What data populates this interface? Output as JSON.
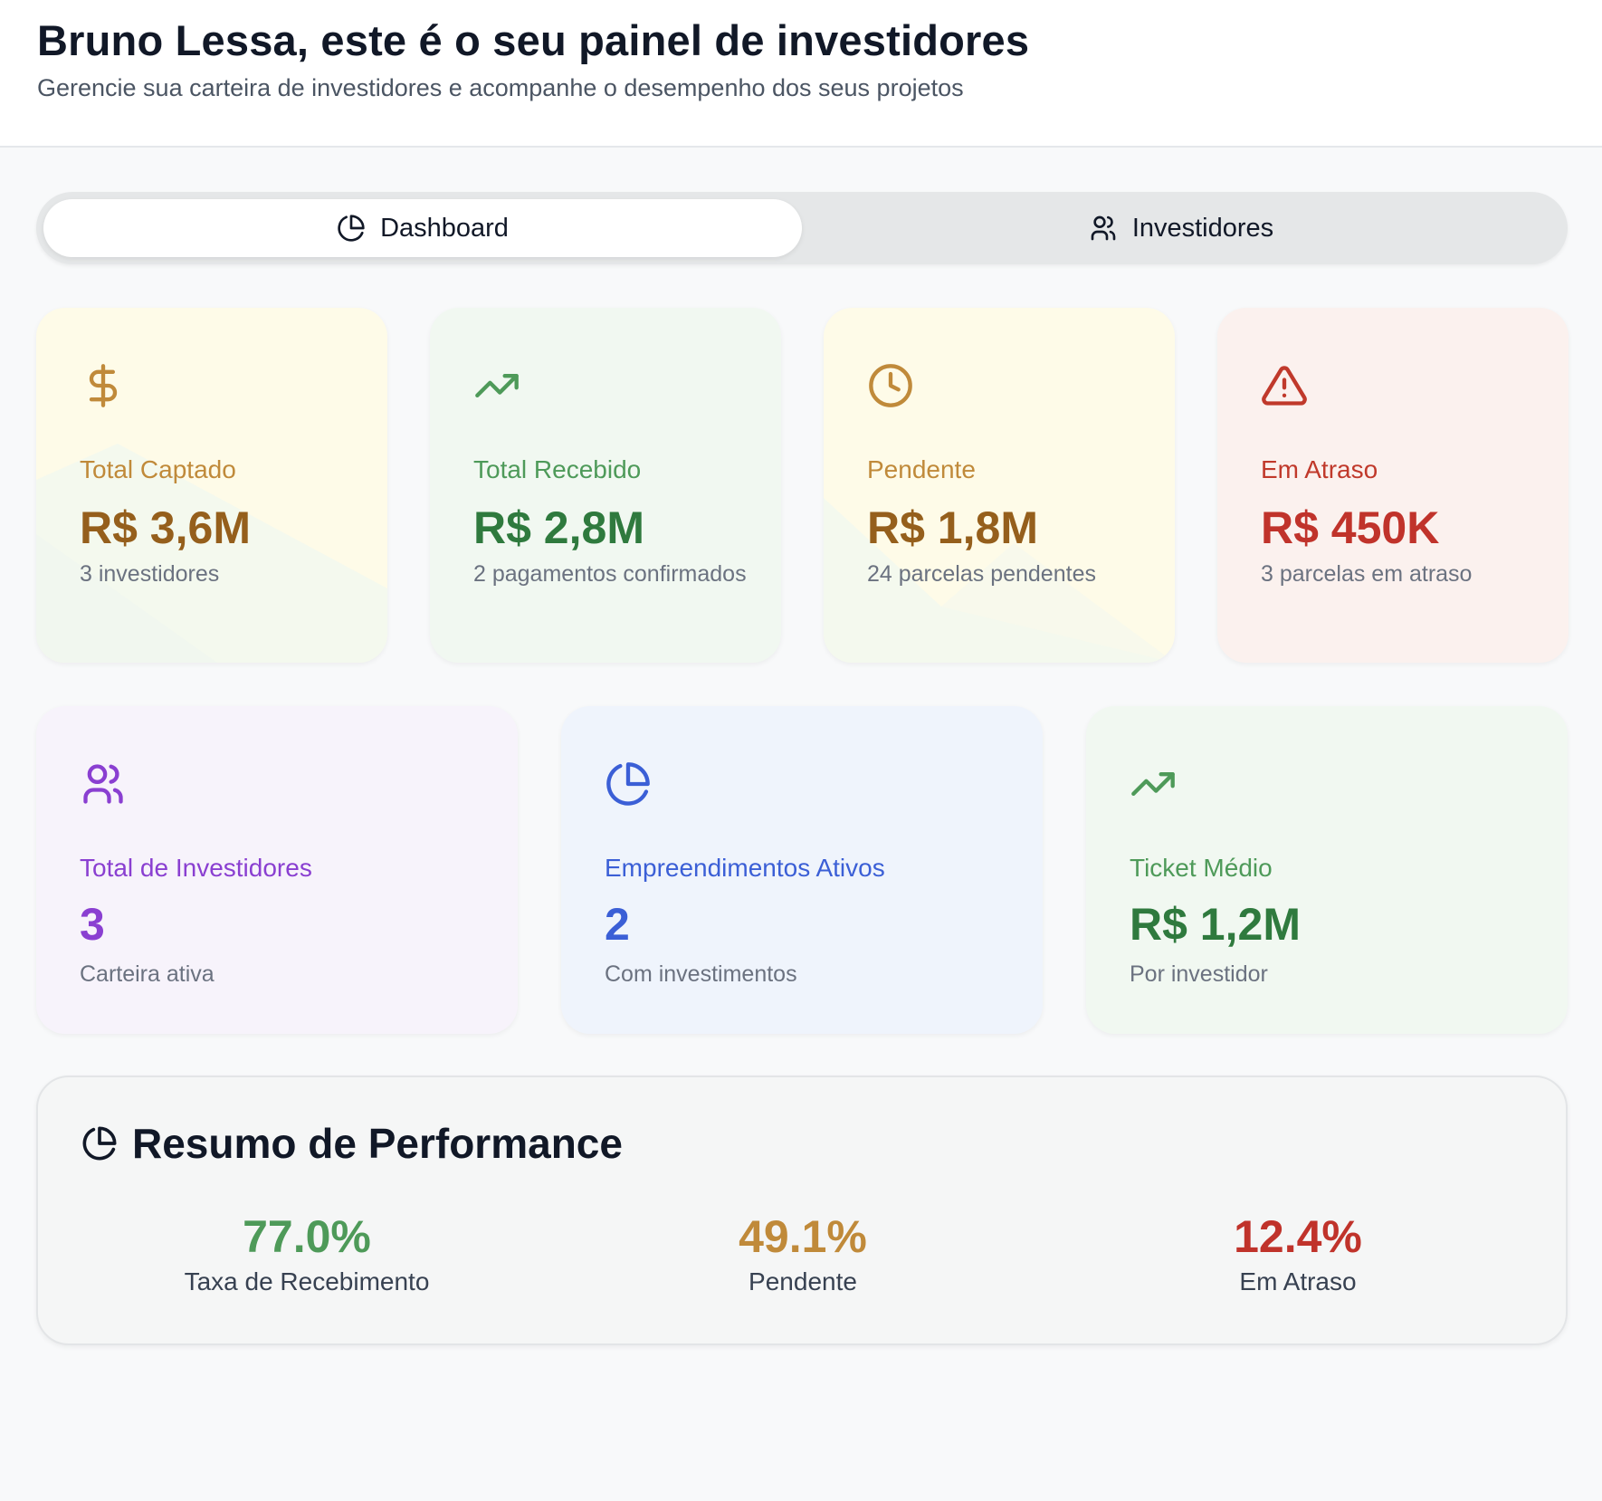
{
  "header": {
    "title": "Bruno Lessa, este é o seu painel de investidores",
    "subtitle": "Gerencie sua carteira de investidores e acompanhe o desempenho dos seus projetos"
  },
  "tabs": [
    {
      "label": "Dashboard",
      "icon": "pie-chart-icon",
      "active": true
    },
    {
      "label": "Investidores",
      "icon": "users-icon",
      "active": false
    }
  ],
  "stats_row1": [
    {
      "icon": "dollar-icon",
      "label": "Total Captado",
      "value": "R$ 3,6M",
      "sub": "3 investidores",
      "accent": "#c08a3a",
      "value_color": "#955f1c",
      "bg": "#fefbe8"
    },
    {
      "icon": "trending-up-icon",
      "label": "Total Recebido",
      "value": "R$ 2,8M",
      "sub": "2 pagamentos confirmados",
      "accent": "#4e9a59",
      "value_color": "#2f7a3e",
      "bg": "#f1f8f1"
    },
    {
      "icon": "clock-icon",
      "label": "Pendente",
      "value": "R$ 1,8M",
      "sub": "24 parcelas pendentes",
      "accent": "#c08a3a",
      "value_color": "#955f1c",
      "bg": "#fefbe8"
    },
    {
      "icon": "alert-triangle-icon",
      "label": "Em Atraso",
      "value": "R$ 450K",
      "sub": "3 parcelas em atraso",
      "accent": "#c0392b",
      "value_color": "#c0332b",
      "bg": "#fbf1ee"
    }
  ],
  "stats_row2": [
    {
      "icon": "users-icon",
      "label": "Total de Investidores",
      "value": "3",
      "sub": "Carteira ativa",
      "accent": "#8a3fd1",
      "value_color": "#8a3fd1",
      "bg": "#f7f3fb"
    },
    {
      "icon": "pie-chart-icon",
      "label": "Empreendimentos Ativos",
      "value": "2",
      "sub": "Com investimentos",
      "accent": "#3b5fd6",
      "value_color": "#3b5fd6",
      "bg": "#eff4fc"
    },
    {
      "icon": "trending-up-icon",
      "label": "Ticket Médio",
      "value": "R$ 1,2M",
      "sub": "Por investidor",
      "accent": "#4e9a59",
      "value_color": "#2f7a3e",
      "bg": "#f1f8f1"
    }
  ],
  "performance": {
    "title": "Resumo de Performance",
    "metrics": [
      {
        "value": "77.0%",
        "label": "Taxa de Recebimento",
        "color": "#4e9a59"
      },
      {
        "value": "49.1%",
        "label": "Pendente",
        "color": "#c08a3a"
      },
      {
        "value": "12.4%",
        "label": "Em Atraso",
        "color": "#c0332b"
      }
    ]
  }
}
